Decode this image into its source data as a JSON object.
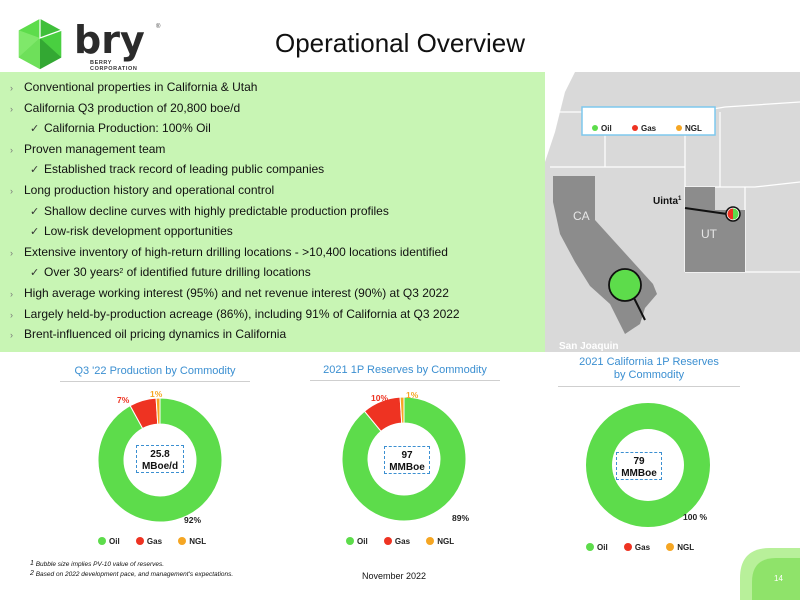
{
  "header": {
    "logo_word": "bry",
    "logo_reg": "®",
    "logo_sub1": "BERRY",
    "logo_sub2": "CORPORATION",
    "title": "Operational Overview"
  },
  "bullets": [
    {
      "text": "Conventional properties in California & Utah",
      "level": 1
    },
    {
      "text": "California Q3 production of 20,800 boe/d",
      "level": 1
    },
    {
      "text": "California Production: 100% Oil",
      "level": 2
    },
    {
      "text": "Proven management team",
      "level": 1
    },
    {
      "text": "Established track record of leading public companies",
      "level": 2
    },
    {
      "text": "Long production history and operational control",
      "level": 1
    },
    {
      "text": "Shallow decline curves with highly predictable production profiles",
      "level": 2
    },
    {
      "text": "Low-risk development opportunities",
      "level": 2
    },
    {
      "text": "Extensive inventory of high-return drilling locations - >10,400 locations identified",
      "level": 1
    },
    {
      "text": "Over 30 years",
      "sup": "2",
      "tail": " of identified future drilling locations",
      "level": 2
    },
    {
      "text": "High average working interest (95%) and net revenue interest (90%) at Q3 2022",
      "level": 1
    },
    {
      "text": "Largely held-by-production acreage (86%), including 91% of California at Q3 2022",
      "level": 1
    },
    {
      "text": "Brent-influenced oil pricing dynamics in California",
      "level": 1
    }
  ],
  "map": {
    "legend": [
      "Oil",
      "Gas",
      "NGL"
    ],
    "label_ca": "CA",
    "label_ut": "UT",
    "label_uinta": "Uinta",
    "label_uinta_sup": "1",
    "label_sj": "San Joaquin"
  },
  "colors": {
    "oil": "#5ddc4b",
    "gas": "#ee3322",
    "ngl": "#f5a623",
    "band": "#c8f5b4",
    "title_blue": "#3b8fd1"
  },
  "chart_data": [
    {
      "type": "pie",
      "title": "Q3 '22 Production by Commodity",
      "center_label": [
        "25.8",
        "MBoe/d"
      ],
      "slices": [
        {
          "name": "Oil",
          "value": 92,
          "label": "92%"
        },
        {
          "name": "Gas",
          "value": 7,
          "label": "7%"
        },
        {
          "name": "NGL",
          "value": 1,
          "label": "1%"
        }
      ],
      "legend": [
        "Oil",
        "Gas",
        "NGL"
      ]
    },
    {
      "type": "pie",
      "title": "2021 1P Reserves by Commodity",
      "center_label": [
        "97",
        "MMBoe"
      ],
      "slices": [
        {
          "name": "Oil",
          "value": 89,
          "label": "89%"
        },
        {
          "name": "Gas",
          "value": 10,
          "label": "10%"
        },
        {
          "name": "NGL",
          "value": 1,
          "label": "1%"
        }
      ],
      "legend": [
        "Oil",
        "Gas",
        "NGL"
      ]
    },
    {
      "type": "pie",
      "title": "2021 California 1P Reserves by Commodity",
      "title_lines": [
        "2021 California 1P Reserves",
        "by Commodity"
      ],
      "center_label": [
        "79",
        "MMBoe"
      ],
      "slices": [
        {
          "name": "Oil",
          "value": 100,
          "label": "100 %"
        },
        {
          "name": "Gas",
          "value": 0,
          "label": ""
        },
        {
          "name": "NGL",
          "value": 0,
          "label": ""
        }
      ],
      "legend": [
        "Oil",
        "Gas",
        "NGL"
      ]
    }
  ],
  "footnotes": [
    {
      "sup": "1",
      "text": " Bubble size implies PV-10 value of reserves."
    },
    {
      "sup": "2",
      "text": " Based on 2022 development pace, and management's expectations."
    }
  ],
  "footer": {
    "date": "November 2022",
    "page": "14"
  }
}
